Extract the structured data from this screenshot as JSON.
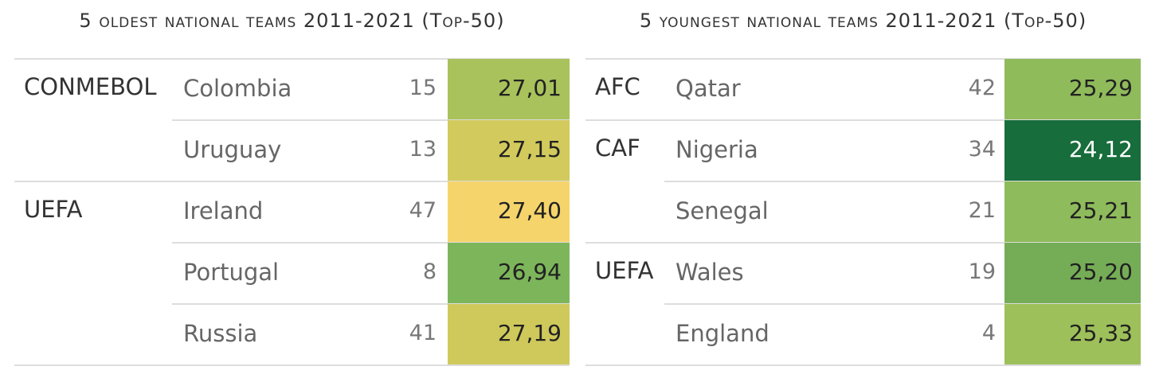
{
  "tables": [
    {
      "title": "5 oldest national teams 2011-2021 (Top-50)",
      "groups": [
        {
          "name": "CONMEBOL",
          "rows": [
            {
              "team": "Colombia",
              "rank": 15,
              "age": "27,01",
              "color": "#a9c25b"
            },
            {
              "team": "Uruguay",
              "rank": 13,
              "age": "27,15",
              "color": "#d2ca5c"
            }
          ]
        },
        {
          "name": "UEFA",
          "rows": [
            {
              "team": "Ireland",
              "rank": 47,
              "age": "27,40",
              "color": "#f5d46b"
            },
            {
              "team": "Portugal",
              "rank": 8,
              "age": "26,94",
              "color": "#7db65a"
            },
            {
              "team": "Russia",
              "rank": 41,
              "age": "27,19",
              "color": "#cfc95c"
            }
          ]
        }
      ]
    },
    {
      "title": "5 youngest national teams 2011-2021 (Top-50)",
      "groups": [
        {
          "name": "AFC",
          "rows": [
            {
              "team": "Qatar",
              "rank": 42,
              "age": "25,29",
              "color": "#8fbb5b"
            }
          ]
        },
        {
          "name": "CAF",
          "rows": [
            {
              "team": "Nigeria",
              "rank": 34,
              "age": "24,12",
              "color": "#176d3b"
            },
            {
              "team": "Senegal",
              "rank": 21,
              "age": "25,21",
              "color": "#8ebb5b"
            }
          ]
        },
        {
          "name": "UEFA",
          "rows": [
            {
              "team": "Wales",
              "rank": 19,
              "age": "25,20",
              "color": "#75ad57"
            },
            {
              "team": "England",
              "rank": 4,
              "age": "25,33",
              "color": "#9dc05a"
            }
          ]
        }
      ]
    }
  ]
}
